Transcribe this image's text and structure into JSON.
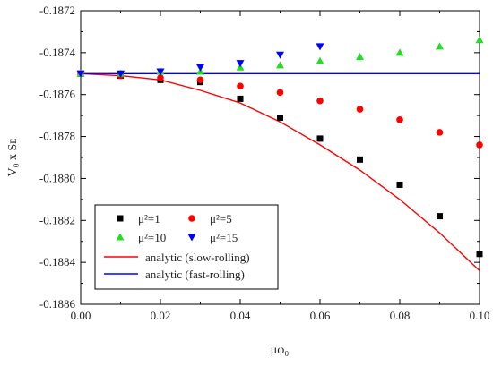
{
  "chart_data": {
    "type": "scatter",
    "xlabel": "μφ₀",
    "ylabel": "V₀ x Sᴇ",
    "xlim": [
      0.0,
      0.1
    ],
    "ylim": [
      -0.1886,
      -0.1872
    ],
    "x_ticks": [
      {
        "value": 0.0,
        "label": "0.00"
      },
      {
        "value": 0.02,
        "label": "0.02"
      },
      {
        "value": 0.04,
        "label": "0.04"
      },
      {
        "value": 0.06,
        "label": "0.06"
      },
      {
        "value": 0.08,
        "label": "0.08"
      },
      {
        "value": 0.1,
        "label": "0.10"
      }
    ],
    "y_ticks": [
      {
        "value": -0.1872,
        "label": "-0.1872"
      },
      {
        "value": -0.1874,
        "label": "-0.1874"
      },
      {
        "value": -0.1876,
        "label": "-0.1876"
      },
      {
        "value": -0.1878,
        "label": "-0.1878"
      },
      {
        "value": -0.188,
        "label": "-0.1880"
      },
      {
        "value": -0.1882,
        "label": "-0.1882"
      },
      {
        "value": -0.1884,
        "label": "-0.1884"
      },
      {
        "value": -0.1886,
        "label": "-0.1886"
      }
    ],
    "grid": false,
    "legend_position": "bottom-left",
    "series": [
      {
        "name": "μ²=1",
        "kind": "points",
        "marker": "square",
        "color": "#000000",
        "x": [
          0.0,
          0.01,
          0.02,
          0.03,
          0.04,
          0.05,
          0.06,
          0.07,
          0.08,
          0.09,
          0.1
        ],
        "y": [
          -0.1875,
          -0.18751,
          -0.18753,
          -0.18754,
          -0.18762,
          -0.18771,
          -0.18781,
          -0.18791,
          -0.18803,
          -0.18818,
          -0.18836
        ]
      },
      {
        "name": "μ²=5",
        "kind": "points",
        "marker": "circle",
        "color": "#ff0000",
        "x": [
          0.0,
          0.01,
          0.02,
          0.03,
          0.04,
          0.05,
          0.06,
          0.07,
          0.08,
          0.09,
          0.1
        ],
        "y": [
          -0.1875,
          -0.18751,
          -0.18752,
          -0.18753,
          -0.18756,
          -0.18759,
          -0.18763,
          -0.18767,
          -0.18772,
          -0.18778,
          -0.18784
        ]
      },
      {
        "name": "μ²=10",
        "kind": "points",
        "marker": "triangle-up",
        "color": "#22dd22",
        "x": [
          0.0,
          0.01,
          0.02,
          0.03,
          0.04,
          0.05,
          0.06,
          0.07,
          0.08,
          0.09,
          0.1
        ],
        "y": [
          -0.1875,
          -0.1875,
          -0.18749,
          -0.18749,
          -0.18747,
          -0.18746,
          -0.18744,
          -0.18742,
          -0.1874,
          -0.18737,
          -0.18734
        ]
      },
      {
        "name": "μ²=15",
        "kind": "points",
        "marker": "triangle-down",
        "color": "#0000ff",
        "x": [
          0.0,
          0.01,
          0.02,
          0.03,
          0.04,
          0.05,
          0.06
        ],
        "y": [
          -0.1875,
          -0.1875,
          -0.18749,
          -0.18747,
          -0.18745,
          -0.18741,
          -0.18737
        ]
      },
      {
        "name": "analytic (slow-rolling)",
        "kind": "line",
        "color": "#ff0000",
        "x": [
          0.0,
          0.01,
          0.02,
          0.03,
          0.04,
          0.05,
          0.06,
          0.07,
          0.08,
          0.09,
          0.1
        ],
        "y": [
          -0.1875,
          -0.18751,
          -0.18753,
          -0.18758,
          -0.18764,
          -0.18773,
          -0.18784,
          -0.18796,
          -0.1881,
          -0.18826,
          -0.18844
        ]
      },
      {
        "name": "analytic (fast-rolling)",
        "kind": "line",
        "color": "#0000ff",
        "x": [
          0.0,
          0.1
        ],
        "y": [
          -0.1875,
          -0.1875
        ]
      }
    ]
  }
}
